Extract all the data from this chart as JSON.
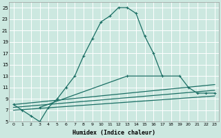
{
  "xlabel": "Humidex (Indice chaleur)",
  "xlim": [
    -0.5,
    23.5
  ],
  "ylim": [
    5,
    26
  ],
  "yticks": [
    5,
    7,
    9,
    11,
    13,
    15,
    17,
    19,
    21,
    23,
    25
  ],
  "xticks": [
    0,
    1,
    2,
    3,
    4,
    5,
    6,
    7,
    8,
    9,
    10,
    11,
    12,
    13,
    14,
    15,
    16,
    17,
    18,
    19,
    20,
    21,
    22,
    23
  ],
  "bg_color": "#cce8e0",
  "grid_color": "#b0d4cc",
  "line_color": "#1a6e64",
  "line1_x": [
    0,
    1,
    2,
    3,
    4,
    5,
    6,
    7,
    8,
    9,
    10,
    11,
    12,
    13,
    14,
    15,
    16,
    17
  ],
  "line1_y": [
    8,
    7,
    6,
    5,
    7.5,
    9,
    11,
    13,
    16.5,
    19.5,
    22.5,
    23.5,
    25,
    25,
    24,
    20,
    17,
    13
  ],
  "line2_x": [
    3,
    13,
    19,
    20,
    21,
    22,
    23
  ],
  "line2_y": [
    7.5,
    13,
    13,
    11,
    10,
    10,
    10
  ],
  "line3_x": [
    0,
    23
  ],
  "line3_y": [
    8,
    11.5
  ],
  "line4_x": [
    0,
    23
  ],
  "line4_y": [
    7.5,
    10.5
  ],
  "line5_x": [
    0,
    23
  ],
  "line5_y": [
    7.0,
    9.5
  ]
}
